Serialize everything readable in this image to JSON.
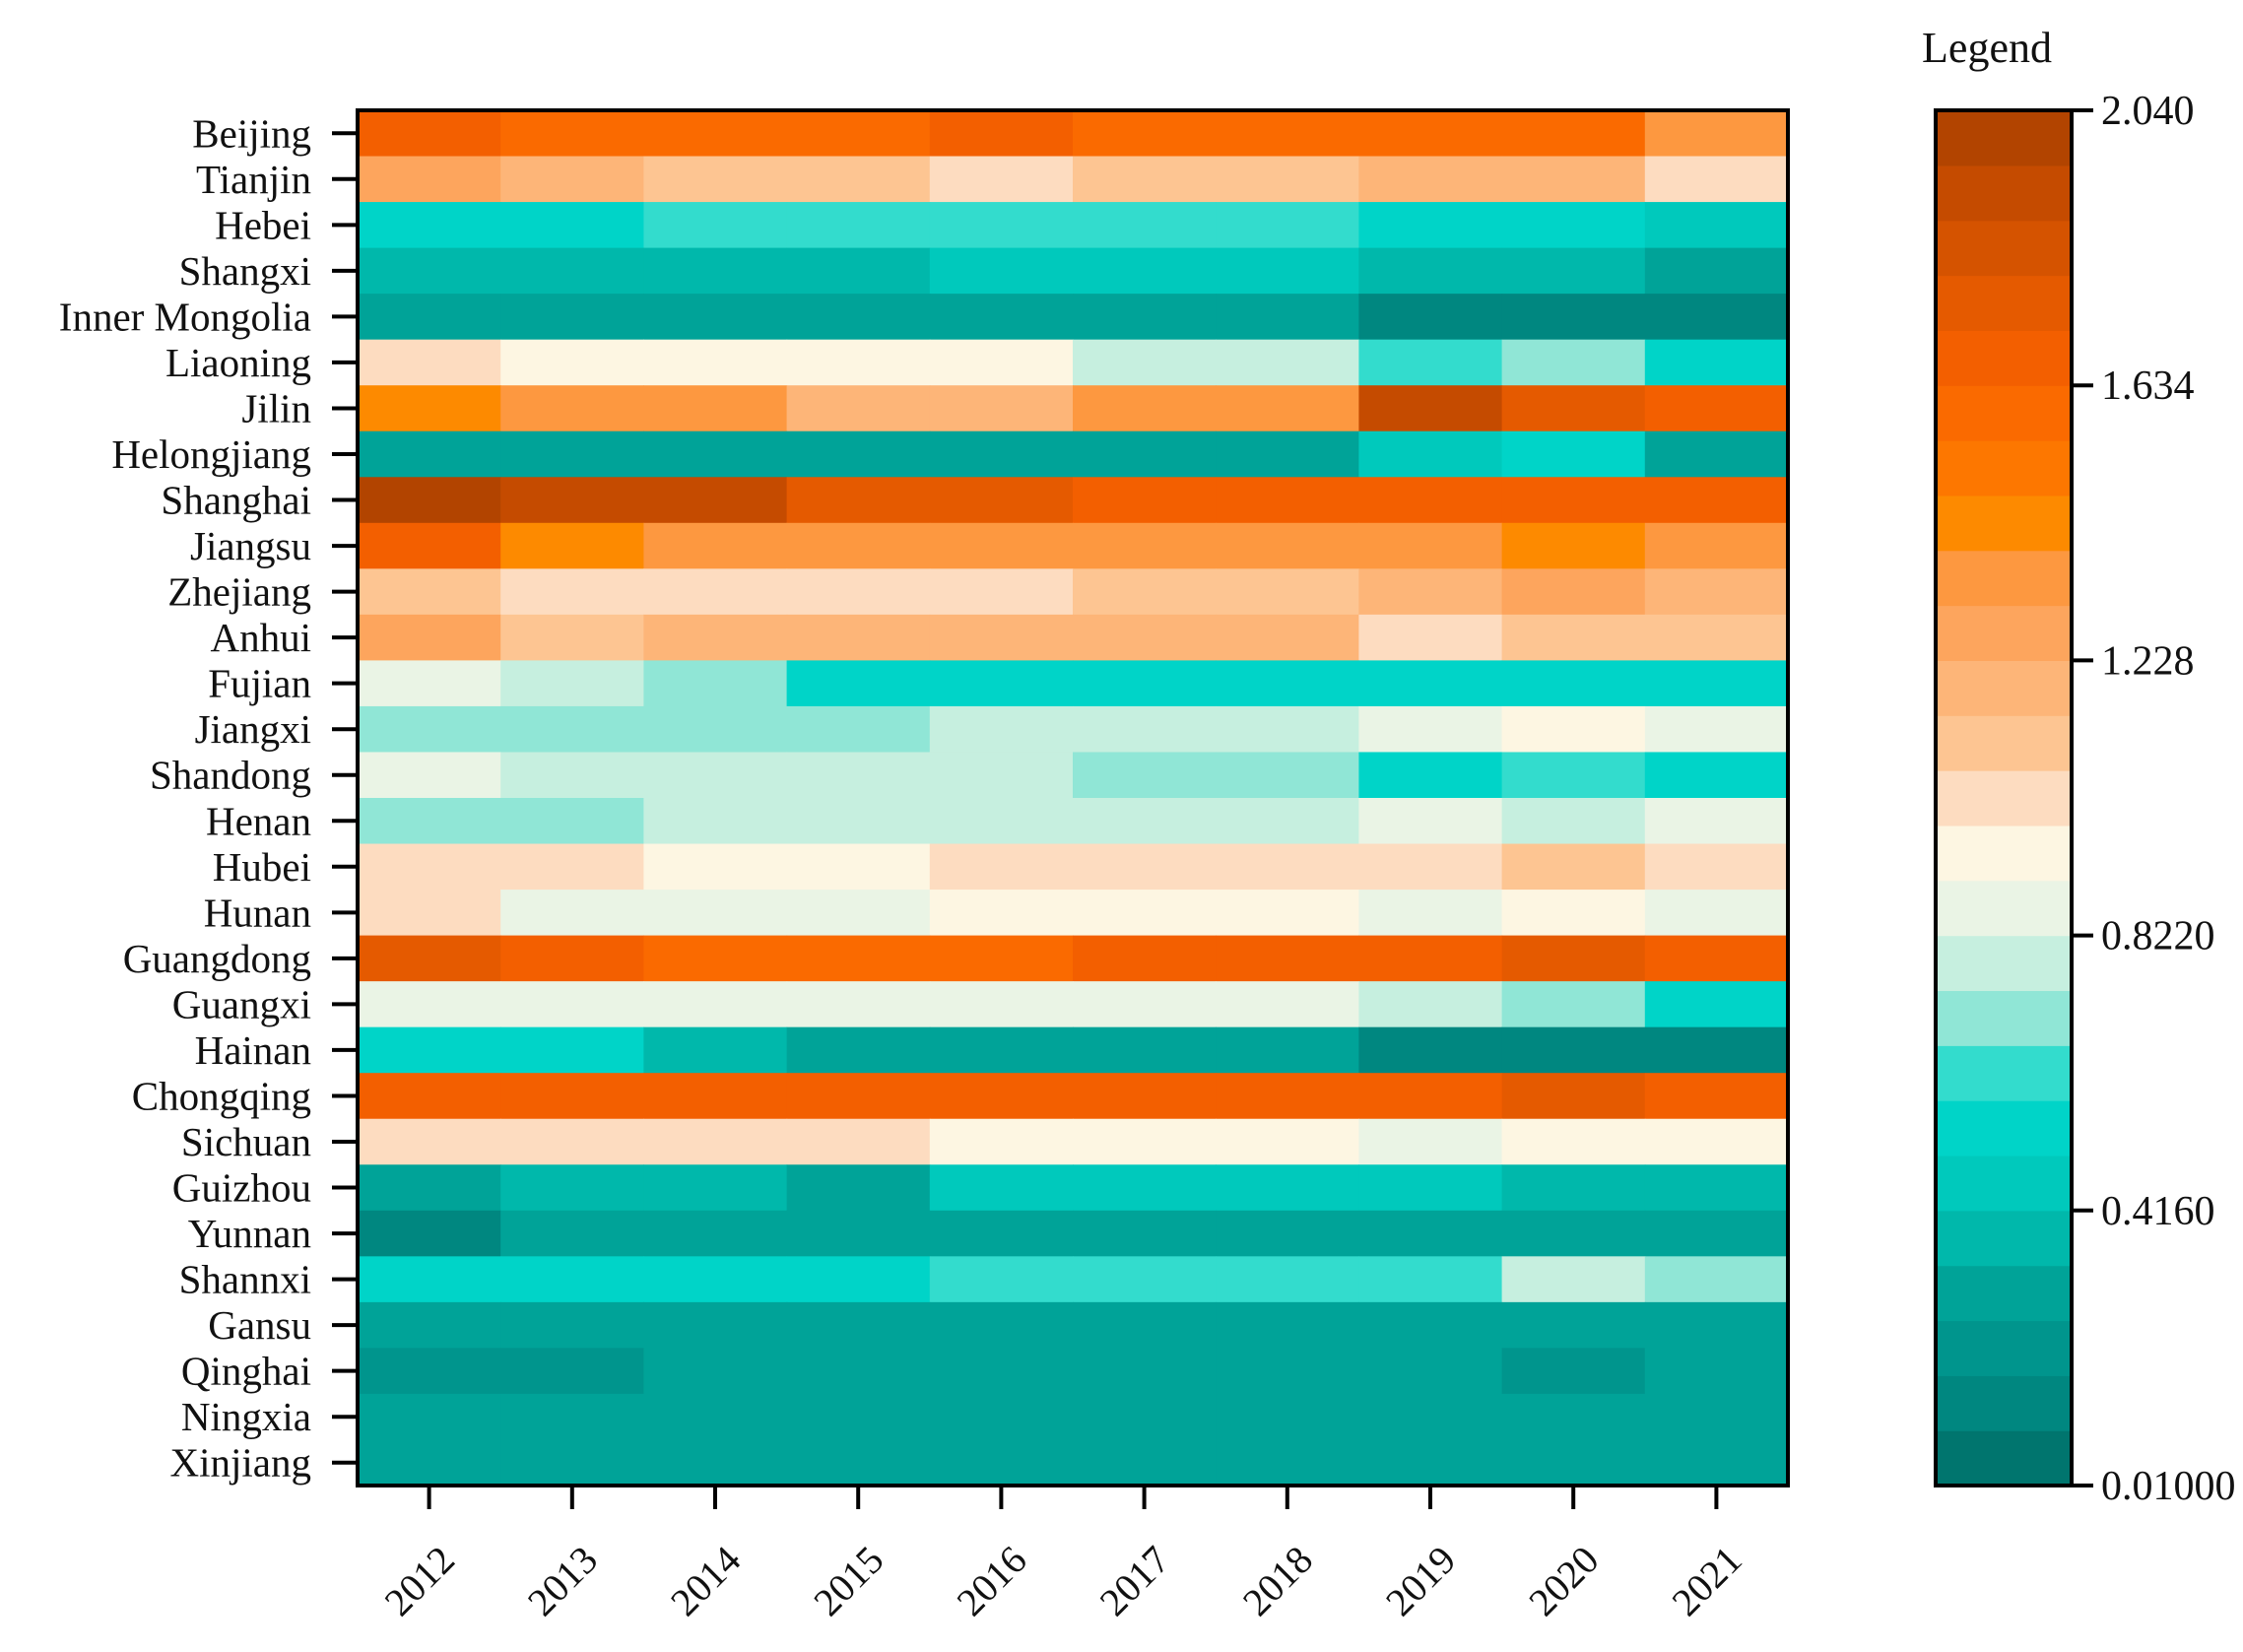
{
  "chart_data": {
    "type": "heatmap",
    "title": "",
    "xlabel": "",
    "ylabel": "",
    "x": [
      "2012",
      "2013",
      "2014",
      "2015",
      "2016",
      "2017",
      "2018",
      "2019",
      "2020",
      "2021"
    ],
    "y": [
      "Beijing",
      "Tianjin",
      "Hebei",
      "Shangxi",
      "Inner Mongolia",
      "Liaoning",
      "Jilin",
      "Helongjiang",
      "Shanghai",
      "Jiangsu",
      "Zhejiang",
      "Anhui",
      "Fujian",
      "Jiangxi",
      "Shandong",
      "Henan",
      "Hubei",
      "Hunan",
      "Guangdong",
      "Guangxi",
      "Hainan",
      "Chongqing",
      "Sichuan",
      "Guizhou",
      "Yunnan",
      "Shannxi",
      "Gansu",
      "Qinghai",
      "Ningxia",
      "Xinjiang"
    ],
    "values": [
      [
        1.68,
        1.62,
        1.62,
        1.62,
        1.66,
        1.63,
        1.63,
        1.57,
        1.57,
        1.33
      ],
      [
        1.28,
        1.16,
        1.08,
        1.08,
        1.03,
        1.08,
        1.08,
        1.18,
        1.18,
        1.03
      ],
      [
        0.54,
        0.54,
        0.62,
        0.62,
        0.62,
        0.62,
        0.62,
        0.52,
        0.52,
        0.45
      ],
      [
        0.37,
        0.37,
        0.37,
        0.37,
        0.43,
        0.43,
        0.43,
        0.37,
        0.37,
        0.32
      ],
      [
        0.27,
        0.27,
        0.27,
        0.27,
        0.27,
        0.27,
        0.27,
        0.15,
        0.15,
        0.1
      ],
      [
        1.03,
        0.95,
        0.95,
        0.95,
        0.95,
        0.76,
        0.76,
        0.62,
        0.66,
        0.57
      ],
      [
        1.4,
        1.33,
        1.33,
        1.18,
        1.18,
        1.33,
        1.33,
        1.88,
        1.72,
        1.66
      ],
      [
        0.33,
        0.33,
        0.33,
        0.33,
        0.33,
        0.33,
        0.33,
        0.45,
        0.5,
        0.33
      ],
      [
        2.01,
        1.89,
        1.89,
        1.79,
        1.79,
        1.7,
        1.7,
        1.7,
        1.7,
        1.66
      ],
      [
        1.64,
        1.4,
        1.36,
        1.36,
        1.33,
        1.36,
        1.36,
        1.36,
        1.4,
        1.36
      ],
      [
        1.08,
        1.03,
        1.03,
        1.03,
        1.03,
        1.08,
        1.08,
        1.18,
        1.28,
        1.18
      ],
      [
        1.28,
        1.08,
        1.18,
        1.18,
        1.18,
        1.18,
        1.18,
        1.03,
        1.08,
        1.08
      ],
      [
        0.85,
        0.76,
        0.66,
        0.57,
        0.57,
        0.57,
        0.57,
        0.57,
        0.54,
        0.54
      ],
      [
        0.66,
        0.66,
        0.66,
        0.66,
        0.76,
        0.76,
        0.76,
        0.85,
        0.95,
        0.85
      ],
      [
        0.85,
        0.76,
        0.76,
        0.76,
        0.76,
        0.66,
        0.66,
        0.57,
        0.62,
        0.57
      ],
      [
        0.66,
        0.66,
        0.76,
        0.76,
        0.76,
        0.76,
        0.76,
        0.85,
        0.76,
        0.85
      ],
      [
        1.03,
        1.03,
        0.95,
        0.95,
        1.03,
        1.03,
        1.03,
        1.03,
        1.08,
        1.03
      ],
      [
        1.03,
        0.85,
        0.85,
        0.85,
        0.95,
        0.95,
        0.95,
        0.85,
        0.95,
        0.85
      ],
      [
        1.75,
        1.66,
        1.62,
        1.62,
        1.62,
        1.66,
        1.66,
        1.7,
        1.75,
        1.66
      ],
      [
        0.85,
        0.85,
        0.85,
        0.85,
        0.85,
        0.85,
        0.85,
        0.76,
        0.66,
        0.57
      ],
      [
        0.54,
        0.5,
        0.37,
        0.32,
        0.32,
        0.27,
        0.27,
        0.15,
        0.15,
        0.1
      ],
      [
        1.7,
        1.66,
        1.66,
        1.66,
        1.66,
        1.7,
        1.7,
        1.7,
        1.75,
        1.66
      ],
      [
        1.03,
        1.03,
        1.03,
        1.03,
        0.95,
        0.95,
        0.95,
        0.85,
        0.95,
        0.95
      ],
      [
        0.32,
        0.37,
        0.37,
        0.32,
        0.43,
        0.43,
        0.43,
        0.43,
        0.37,
        0.37
      ],
      [
        0.15,
        0.32,
        0.32,
        0.32,
        0.27,
        0.27,
        0.27,
        0.27,
        0.27,
        0.32
      ],
      [
        0.57,
        0.57,
        0.57,
        0.57,
        0.62,
        0.62,
        0.62,
        0.62,
        0.76,
        0.66
      ],
      [
        0.33,
        0.33,
        0.33,
        0.27,
        0.33,
        0.27,
        0.27,
        0.27,
        0.27,
        0.27
      ],
      [
        0.21,
        0.21,
        0.27,
        0.27,
        0.27,
        0.27,
        0.27,
        0.27,
        0.25,
        0.3
      ],
      [
        0.3,
        0.3,
        0.3,
        0.3,
        0.3,
        0.27,
        0.27,
        0.27,
        0.32,
        0.32
      ],
      [
        0.3,
        0.3,
        0.3,
        0.33,
        0.33,
        0.27,
        0.27,
        0.27,
        0.3,
        0.27
      ]
    ],
    "color_range": [
      0.01,
      2.04
    ],
    "color_scale": [
      "#00756e",
      "#008780",
      "#00958d",
      "#00a398",
      "#00b8ab",
      "#00c9bc",
      "#00d4c8",
      "#33dccd",
      "#90e6d6",
      "#c6efdf",
      "#eaf4e5",
      "#fdf6e2",
      "#fddcc0",
      "#fdc592",
      "#fdb578",
      "#fda55d",
      "#fd9840",
      "#fd8a00",
      "#fd7700",
      "#fa6a00",
      "#f35f00",
      "#e55a00",
      "#d55300",
      "#c54b00",
      "#b24400"
    ],
    "legend": {
      "title": "Legend",
      "ticks": [
        "2.040",
        "1.634",
        "1.228",
        "0.8220",
        "0.4160",
        "0.01000"
      ],
      "tick_values": [
        2.04,
        1.634,
        1.228,
        0.822,
        0.416,
        0.01
      ],
      "position": "right"
    }
  }
}
